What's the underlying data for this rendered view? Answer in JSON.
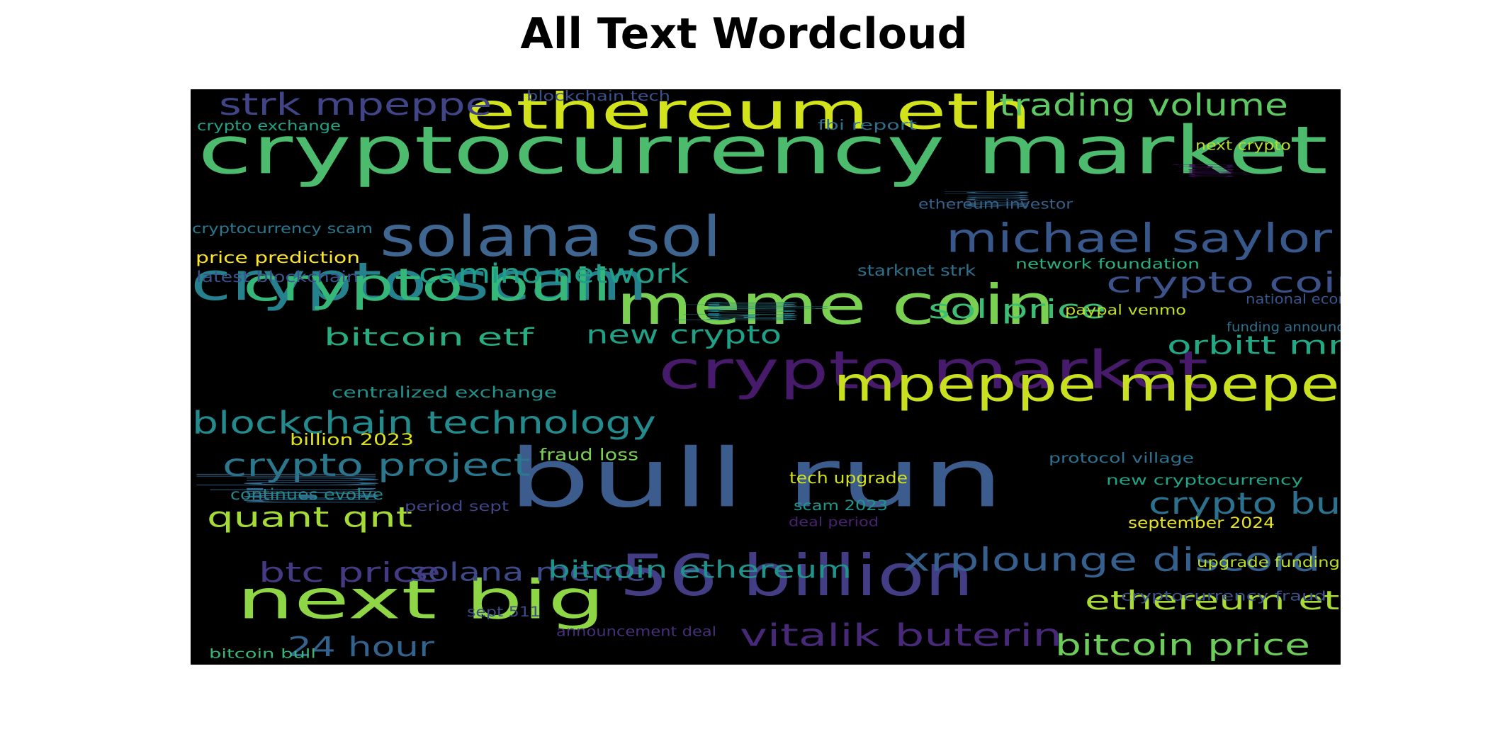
{
  "title": "All Text Wordcloud",
  "chart_data": {
    "type": "wordcloud",
    "title": "All Text Wordcloud",
    "background_color": "#000000",
    "colormap": "viridis",
    "words": [
      {
        "text": "bull run",
        "weight": 1.0,
        "color": "#3b5c8d"
      },
      {
        "text": "cryptocurrency market",
        "weight": 0.8,
        "color": "#4cbb6e"
      },
      {
        "text": "crypto market",
        "weight": 0.72,
        "color": "#481a6c"
      },
      {
        "text": "56 billion",
        "weight": 0.68,
        "color": "#433d85"
      },
      {
        "text": "next big",
        "weight": 0.68,
        "color": "#8ed645"
      },
      {
        "text": "meme coin",
        "weight": 0.68,
        "color": "#7ad151"
      },
      {
        "text": "solana sol",
        "weight": 0.65,
        "color": "#3e6690"
      },
      {
        "text": "crypto scam",
        "weight": 0.65,
        "color": "#26818e"
      },
      {
        "text": "ethereum eth",
        "weight": 0.6,
        "color": "#d2e21b"
      },
      {
        "text": "mpeppe mpepe",
        "weight": 0.58,
        "color": "#c8e020"
      },
      {
        "text": "crypto bull",
        "weight": 0.56,
        "color": "#35b779"
      },
      {
        "text": "michael saylor",
        "weight": 0.44,
        "color": "#38588c"
      },
      {
        "text": "blockchain technology",
        "weight": 0.4,
        "color": "#238a8d"
      },
      {
        "text": "vitalik buterin",
        "weight": 0.4,
        "color": "#482979"
      },
      {
        "text": "xrplounge discord",
        "weight": 0.36,
        "color": "#355f8d"
      },
      {
        "text": "trading volume",
        "weight": 0.36,
        "color": "#5ec962"
      },
      {
        "text": "crypto project",
        "weight": 0.36,
        "color": "#2a778e"
      },
      {
        "text": "strk mpeppe",
        "weight": 0.36,
        "color": "#414487"
      },
      {
        "text": "bitcoin price",
        "weight": 0.34,
        "color": "#6ccd5a"
      },
      {
        "text": "ethereum etf",
        "weight": 0.34,
        "color": "#a8db34"
      },
      {
        "text": "crypto buy",
        "weight": 0.34,
        "color": "#2c728e"
      },
      {
        "text": "crypto coin",
        "weight": 0.32,
        "color": "#3b528b"
      },
      {
        "text": "next bull",
        "weight": 0.32,
        "color": "#31688e"
      },
      {
        "text": "quant qnt",
        "weight": 0.32,
        "color": "#a5db36"
      },
      {
        "text": "camino network",
        "weight": 0.32,
        "color": "#1f9e89"
      },
      {
        "text": "orbitt mm",
        "weight": 0.32,
        "color": "#22a884"
      },
      {
        "text": "sol price",
        "weight": 0.32,
        "color": "#3dbc74"
      },
      {
        "text": "bitcoin etf",
        "weight": 0.3,
        "color": "#27ad81"
      },
      {
        "text": "new crypto",
        "weight": 0.3,
        "color": "#1fa187"
      },
      {
        "text": "solana meme",
        "weight": 0.3,
        "color": "#3e4989"
      },
      {
        "text": "bitcoin ethereum",
        "weight": 0.3,
        "color": "#20928c"
      },
      {
        "text": "btc price",
        "weight": 0.3,
        "color": "#443983"
      },
      {
        "text": "24 hour",
        "weight": 0.3,
        "color": "#33638d"
      },
      {
        "text": "best crypto",
        "weight": 0.2,
        "color": "#25838e"
      },
      {
        "text": "sol could",
        "weight": 0.18,
        "color": "#31688e"
      },
      {
        "text": "blockchain tech",
        "weight": 0.16,
        "color": "#3b528b"
      },
      {
        "text": "crypto exchange",
        "weight": 0.16,
        "color": "#20a386"
      },
      {
        "text": "fbi report",
        "weight": 0.16,
        "color": "#2d708e"
      },
      {
        "text": "next crypto",
        "weight": 0.14,
        "color": "#b5de2b"
      },
      {
        "text": "crypto etf",
        "weight": 0.14,
        "color": "#471063"
      },
      {
        "text": "ethereum investor",
        "weight": 0.14,
        "color": "#33638d"
      },
      {
        "text": "cryptocurrency scam",
        "weight": 0.16,
        "color": "#2a788e"
      },
      {
        "text": "price prediction",
        "weight": 0.16,
        "color": "#fde725"
      },
      {
        "text": "latest blockchain",
        "weight": 0.16,
        "color": "#3b528b"
      },
      {
        "text": "starknet strk",
        "weight": 0.16,
        "color": "#2c728e"
      },
      {
        "text": "network foundation",
        "weight": 0.16,
        "color": "#28ae80"
      },
      {
        "text": "national economy",
        "weight": 0.14,
        "color": "#39568c"
      },
      {
        "text": "paypal venmo",
        "weight": 0.16,
        "color": "#c2df23"
      },
      {
        "text": "funding announcement",
        "weight": 0.14,
        "color": "#2d708e"
      },
      {
        "text": "centralized exchange",
        "weight": 0.16,
        "color": "#21918c"
      },
      {
        "text": "billion 2023",
        "weight": 0.16,
        "color": "#dde318"
      },
      {
        "text": "fraud loss",
        "weight": 0.16,
        "color": "#7ad151"
      },
      {
        "text": "protocol village",
        "weight": 0.16,
        "color": "#2c728e"
      },
      {
        "text": "tech upgrade",
        "weight": 0.16,
        "color": "#d0e11c"
      },
      {
        "text": "new cryptocurrency",
        "weight": 0.16,
        "color": "#20a386"
      },
      {
        "text": "continues evolve",
        "weight": 0.16,
        "color": "#23898e"
      },
      {
        "text": "scam 2023",
        "weight": 0.16,
        "color": "#1f968b"
      },
      {
        "text": "period sept",
        "weight": 0.16,
        "color": "#404688"
      },
      {
        "text": "deal period",
        "weight": 0.14,
        "color": "#482173"
      },
      {
        "text": "september 2024",
        "weight": 0.16,
        "color": "#e5e419"
      },
      {
        "text": "upgrade funding",
        "weight": 0.16,
        "color": "#bade28"
      },
      {
        "text": "cryptocurrency fraud",
        "weight": 0.16,
        "color": "#3b528b"
      },
      {
        "text": "sept 511",
        "weight": 0.16,
        "color": "#3e4a89"
      },
      {
        "text": "announcement deal",
        "weight": 0.16,
        "color": "#472f7d"
      },
      {
        "text": "bitcoin bull",
        "weight": 0.14,
        "color": "#35b779"
      }
    ]
  }
}
